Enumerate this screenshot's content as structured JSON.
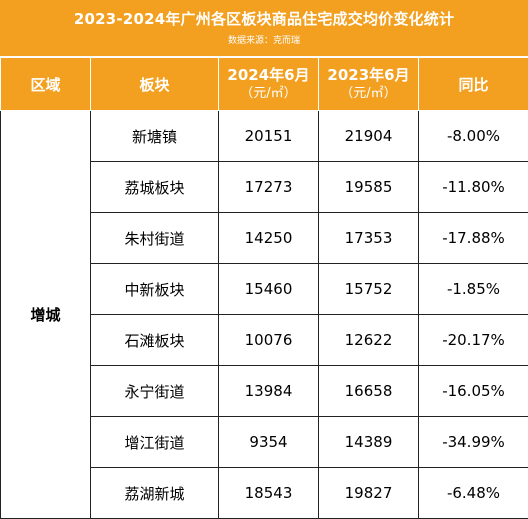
{
  "header": {
    "title": "2023-2024年广州各区板块商品住宅成交均价变化统计",
    "source": "数据来源：克而瑞"
  },
  "columns": {
    "region": "区域",
    "block": "板块",
    "y2024_line1": "2024年6月",
    "y2024_line2": "（元/㎡）",
    "y2023_line1": "2023年6月",
    "y2023_line2": "（元/㎡）",
    "yoy": "同比"
  },
  "region": "增城",
  "rows": [
    {
      "block": "新塘镇",
      "y2024": "20151",
      "y2023": "21904",
      "yoy": "-8.00%"
    },
    {
      "block": "荔城板块",
      "y2024": "17273",
      "y2023": "19585",
      "yoy": "-11.80%"
    },
    {
      "block": "朱村街道",
      "y2024": "14250",
      "y2023": "17353",
      "yoy": "-17.88%"
    },
    {
      "block": "中新板块",
      "y2024": "15460",
      "y2023": "15752",
      "yoy": "-1.85%"
    },
    {
      "block": "石滩板块",
      "y2024": "10076",
      "y2023": "12622",
      "yoy": "-20.17%"
    },
    {
      "block": "永宁街道",
      "y2024": "13984",
      "y2023": "16658",
      "yoy": "-16.05%"
    },
    {
      "block": "增江街道",
      "y2024": "9354",
      "y2023": "14389",
      "yoy": "-34.99%"
    },
    {
      "block": "荔湖新城",
      "y2024": "18543",
      "y2023": "19827",
      "yoy": "-6.48%"
    }
  ],
  "colors": {
    "header_orange": "#f39f1f",
    "header_text": "#ffffff",
    "border": "#222222"
  }
}
